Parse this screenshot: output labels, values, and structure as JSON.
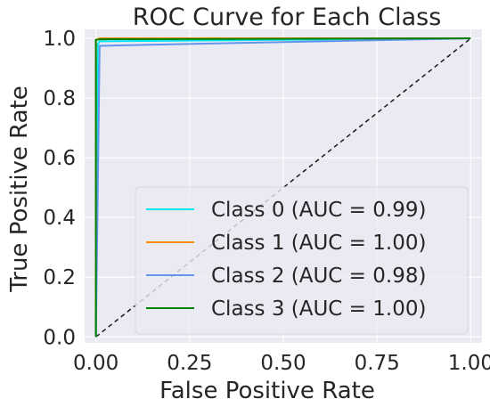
{
  "chart_data": {
    "type": "line",
    "title": "ROC Curve for Each Class",
    "xlabel": "False Positive Rate",
    "ylabel": "True Positive Rate",
    "xlim": [
      -0.03,
      1.03
    ],
    "ylim": [
      -0.02,
      1.03
    ],
    "grid": true,
    "legend_position": "lower-right",
    "x_ticks": [
      "0.00",
      "0.25",
      "0.50",
      "0.75",
      "1.00"
    ],
    "y_ticks": [
      "0.0",
      "0.2",
      "0.4",
      "0.6",
      "0.8",
      "1.0"
    ],
    "colors": {
      "background": "#eaeaf2",
      "grid": "#ffffff",
      "diagonal": "#1a1a1a"
    },
    "series": [
      {
        "name": "Class 0 (AUC = 0.99)",
        "color": "#00e5ee",
        "points": [
          [
            0.0,
            0.0
          ],
          [
            0.005,
            0.98
          ],
          [
            0.01,
            0.99
          ],
          [
            1.0,
            1.0
          ]
        ]
      },
      {
        "name": "Class 1 (AUC = 1.00)",
        "color": "#ff8c00",
        "points": [
          [
            0.0,
            0.0
          ],
          [
            0.0,
            0.995
          ],
          [
            0.01,
            1.0
          ],
          [
            1.0,
            1.0
          ]
        ]
      },
      {
        "name": "Class 2 (AUC = 0.98)",
        "color": "#6495ed",
        "points": [
          [
            0.0,
            0.0
          ],
          [
            0.01,
            0.975
          ],
          [
            0.2,
            0.98
          ],
          [
            1.0,
            1.0
          ]
        ]
      },
      {
        "name": "Class 3 (AUC = 1.00)",
        "color": "#008000",
        "points": [
          [
            0.0,
            0.0
          ],
          [
            0.0,
            0.995
          ],
          [
            0.012,
            0.997
          ],
          [
            1.0,
            1.0
          ]
        ]
      }
    ],
    "diagonal": [
      [
        0,
        0
      ],
      [
        1,
        1
      ]
    ]
  }
}
